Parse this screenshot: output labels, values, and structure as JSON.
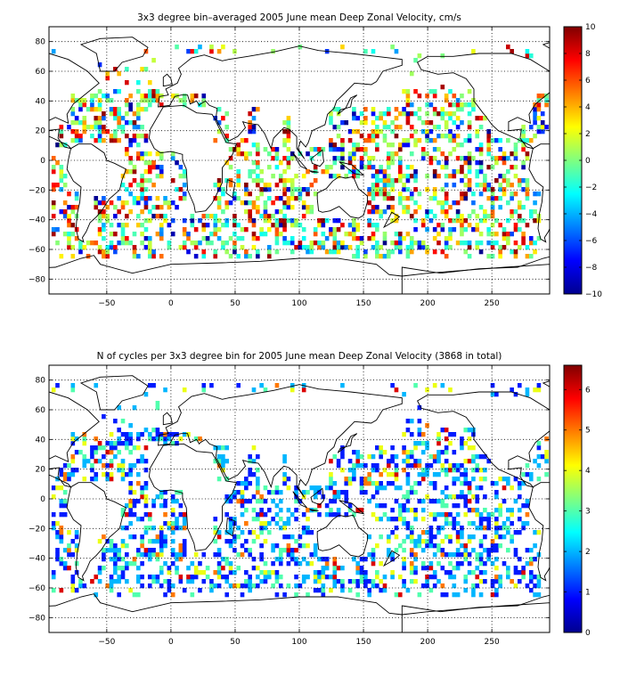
{
  "chart_data": [
    {
      "type": "heatmap",
      "title": "3x3 degree bin–averaged 2005 June mean Deep Zonal Velocity, cm/s",
      "xlabel": "",
      "ylabel": "",
      "xlim": [
        -95,
        295
      ],
      "ylim": [
        -90,
        90
      ],
      "x_ticks": [
        -50,
        0,
        50,
        100,
        150,
        200,
        250
      ],
      "y_ticks": [
        80,
        60,
        40,
        20,
        0,
        -20,
        -40,
        -60,
        -80
      ],
      "grid": true,
      "bin_size_deg": 3,
      "colorbar": {
        "min": -10,
        "max": 10,
        "ticks": [
          10,
          8,
          6,
          4,
          2,
          0,
          -2,
          -4,
          -6,
          -8,
          -10
        ],
        "colormap": "jet",
        "position": "right"
      }
    },
    {
      "type": "heatmap",
      "title": "N of cycles per 3x3 degree bin for 2005 June mean Deep Zonal Velocity (3868 in total)",
      "xlabel": "",
      "ylabel": "",
      "xlim": [
        -95,
        295
      ],
      "ylim": [
        -90,
        90
      ],
      "x_ticks": [
        -50,
        0,
        50,
        100,
        150,
        200,
        250
      ],
      "y_ticks": [
        80,
        60,
        40,
        20,
        0,
        -20,
        -40,
        -60,
        -80
      ],
      "grid": true,
      "bin_size_deg": 3,
      "total_cycles": 3868,
      "colorbar": {
        "min": 0,
        "max": 6.6,
        "ticks": [
          6,
          5,
          4,
          3,
          2,
          1,
          0
        ],
        "colormap": "jet",
        "position": "right"
      }
    }
  ]
}
